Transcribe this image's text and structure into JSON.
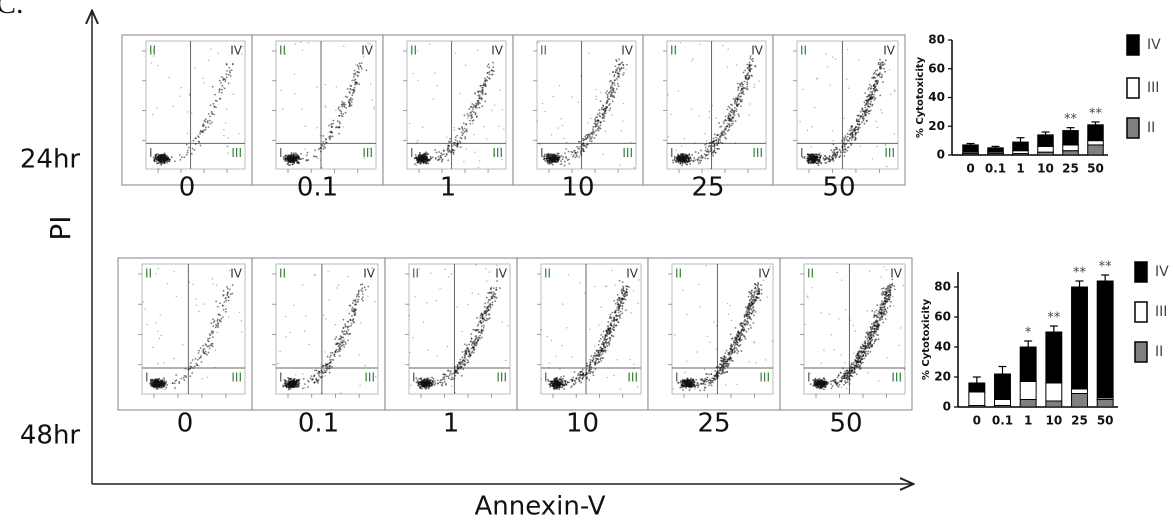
{
  "figure": {
    "panel_letter": "C.",
    "y_axis_label": "PI",
    "x_axis_label": "Annexin-V"
  },
  "rows": [
    {
      "label": "24hr",
      "doses": [
        "0",
        "0.1",
        "1",
        "10",
        "25",
        "50"
      ]
    },
    {
      "label": "48hr",
      "doses": [
        "0",
        "0.1",
        "1",
        "10",
        "25",
        "50"
      ]
    }
  ],
  "quadrant_labels": [
    "II",
    "IV",
    "I",
    "III"
  ],
  "chart_data": [
    {
      "type": "bar",
      "stacked": true,
      "y_label": "% Cytotoxicity",
      "categories": [
        "0",
        "0.1",
        "1",
        "10",
        "25",
        "50"
      ],
      "series": [
        {
          "name": "II",
          "color": "#808080",
          "values": [
            1,
            1,
            1,
            2,
            3,
            7
          ]
        },
        {
          "name": "III",
          "color": "#ffffff",
          "values": [
            1,
            1,
            2,
            4,
            4,
            3
          ]
        },
        {
          "name": "IV",
          "color": "#000000",
          "values": [
            5,
            3,
            6,
            8,
            10,
            11
          ],
          "errors": [
            1,
            1,
            3,
            2,
            2,
            2
          ]
        }
      ],
      "significance": [
        null,
        null,
        null,
        null,
        "**",
        "**"
      ],
      "ylim": [
        0,
        80
      ],
      "yticks": [
        0,
        20,
        40,
        60,
        80
      ]
    },
    {
      "type": "bar",
      "stacked": true,
      "y_label": "% Cytotoxicity",
      "categories": [
        "0",
        "0.1",
        "1",
        "10",
        "25",
        "50"
      ],
      "series": [
        {
          "name": "II",
          "color": "#808080",
          "values": [
            1,
            1,
            5,
            4,
            9,
            5
          ]
        },
        {
          "name": "III",
          "color": "#ffffff",
          "values": [
            9,
            4,
            12,
            12,
            3,
            1
          ]
        },
        {
          "name": "IV",
          "color": "#000000",
          "values": [
            6,
            17,
            23,
            34,
            68,
            78
          ],
          "errors": [
            4,
            5,
            4,
            4,
            4,
            4
          ]
        }
      ],
      "significance": [
        null,
        null,
        "*",
        "**",
        "**",
        "**"
      ],
      "ylim": [
        0,
        90
      ],
      "yticks": [
        0,
        20,
        40,
        60,
        80
      ]
    }
  ]
}
